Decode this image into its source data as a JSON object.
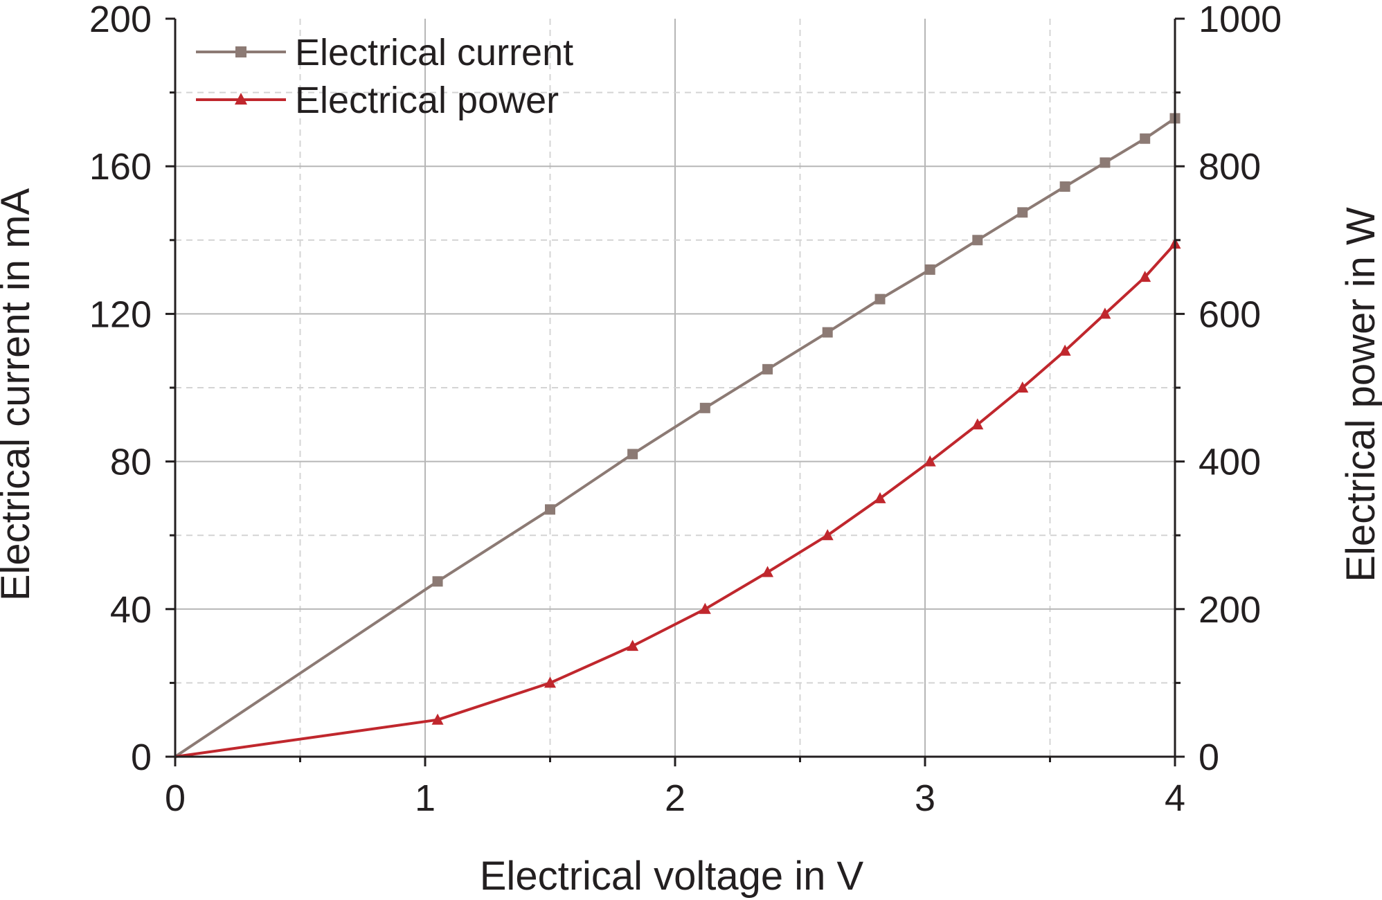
{
  "chart_data": {
    "type": "line",
    "xlabel": "Electrical voltage in V",
    "ylabel_left": "Electrical current in mA",
    "ylabel_right": "Electrical power in W",
    "xlim": [
      0,
      4
    ],
    "ylim_left": [
      0,
      200
    ],
    "ylim_right": [
      0,
      1000
    ],
    "x_ticks": [
      0,
      1,
      2,
      3,
      4
    ],
    "y_left_ticks": [
      0,
      40,
      80,
      120,
      160,
      200
    ],
    "y_right_ticks": [
      0,
      200,
      400,
      600,
      800,
      1000
    ],
    "grid": true,
    "legend_position": "top-left",
    "series": [
      {
        "name": "Electrical current",
        "axis": "left",
        "color": "#8c7a74",
        "marker": "square",
        "x": [
          0,
          1.05,
          1.5,
          1.83,
          2.12,
          2.37,
          2.61,
          2.82,
          3.02,
          3.21,
          3.39,
          3.56,
          3.72,
          3.88,
          4.0
        ],
        "y": [
          0,
          47.5,
          67,
          82,
          94.5,
          105,
          115,
          124,
          132,
          140,
          147.5,
          154.5,
          161,
          167.5,
          173
        ]
      },
      {
        "name": "Electrical power",
        "axis": "right",
        "color": "#c0272d",
        "marker": "triangle",
        "x": [
          0,
          1.05,
          1.5,
          1.83,
          2.12,
          2.37,
          2.61,
          2.82,
          3.02,
          3.21,
          3.39,
          3.56,
          3.72,
          3.88,
          4.0
        ],
        "y": [
          0,
          50,
          100,
          150,
          200,
          250,
          300,
          350,
          400,
          450,
          500,
          550,
          600,
          650,
          695
        ]
      }
    ]
  }
}
